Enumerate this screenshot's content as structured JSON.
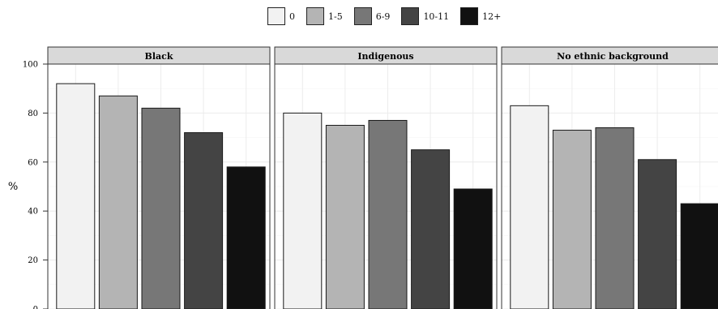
{
  "chart_data": {
    "type": "bar",
    "ylabel": "%",
    "ylim": [
      0,
      100
    ],
    "yticks": [
      0,
      20,
      40,
      60,
      80,
      100
    ],
    "grid": true,
    "legend_position": "top",
    "series": [
      {
        "name": "0",
        "color": "#f2f2f2"
      },
      {
        "name": "1-5",
        "color": "#b4b4b4"
      },
      {
        "name": "6-9",
        "color": "#777777"
      },
      {
        "name": "10-11",
        "color": "#444444"
      },
      {
        "name": "12+",
        "color": "#111111"
      }
    ],
    "panels": [
      {
        "title": "Black",
        "values": [
          92,
          87,
          82,
          72,
          58
        ]
      },
      {
        "title": "Indigenous",
        "values": [
          80,
          75,
          77,
          65,
          49
        ]
      },
      {
        "title": "No ethnic background",
        "values": [
          83,
          73,
          74,
          61,
          43
        ]
      }
    ]
  }
}
